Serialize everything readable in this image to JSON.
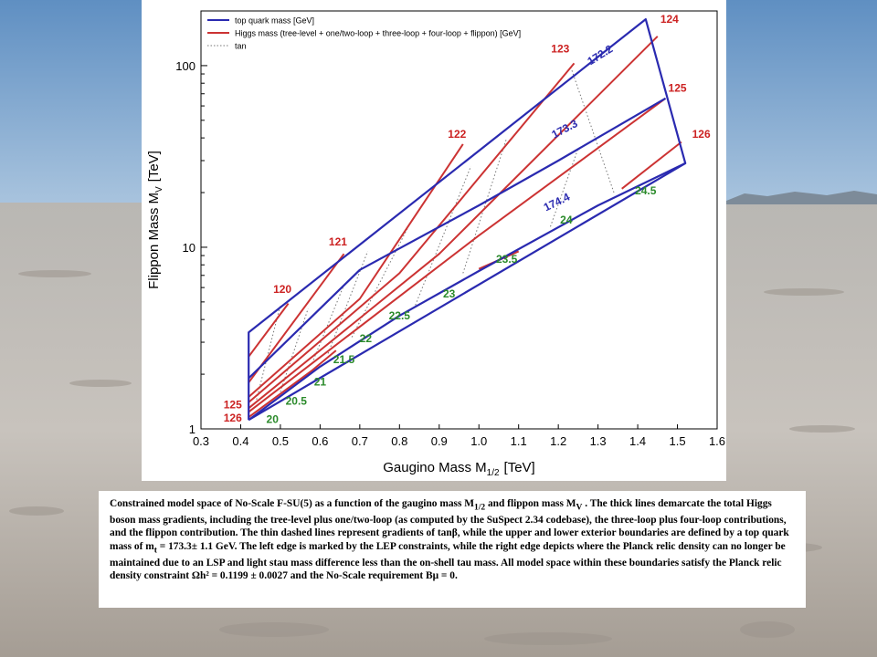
{
  "chart_data": {
    "type": "line",
    "xlabel": "Gaugino Mass M",
    "xlabel_sub": "1/2",
    "xlabel_unit": "[TeV]",
    "ylabel": "Flippon Mass M",
    "ylabel_sub": "V",
    "ylabel_unit": "[TeV]",
    "xlim": [
      0.3,
      1.6
    ],
    "ylim": [
      1,
      200
    ],
    "yscale": "log",
    "x_ticks": [
      "0.3",
      "0.4",
      "0.5",
      "0.6",
      "0.7",
      "0.8",
      "0.9",
      "1.0",
      "1.1",
      "1.2",
      "1.3",
      "1.4",
      "1.5",
      "1.6"
    ],
    "y_ticks": [
      {
        "value": 1,
        "label": "1"
      },
      {
        "value": 10,
        "label": "10"
      },
      {
        "value": 100,
        "label": "100"
      }
    ],
    "legend": {
      "placement": "top-left",
      "entries": [
        {
          "label": "top quark mass [GeV]",
          "color": "#2a2ab0",
          "style": "solid"
        },
        {
          "label": "Higgs mass (tree-level + one/two-loop + three-loop + four-loop + flippon) [GeV]",
          "color": "#cc3333",
          "style": "solid"
        },
        {
          "label": "tan",
          "color": "#777777",
          "style": "dotted"
        }
      ]
    },
    "series": [
      {
        "group": "boundary",
        "color": "#2a2ab0",
        "points": [
          [
            0.42,
            1.12
          ],
          [
            0.42,
            3.4
          ],
          [
            1.42,
            180
          ],
          [
            1.52,
            29
          ],
          [
            0.42,
            1.12
          ]
        ]
      },
      {
        "name": "173.3",
        "group": "top",
        "color": "#2a2ab0",
        "points": [
          [
            0.42,
            1.9
          ],
          [
            0.7,
            7.5
          ],
          [
            1.0,
            17
          ],
          [
            1.2,
            30
          ],
          [
            1.47,
            66
          ]
        ]
      },
      {
        "name": "174.4",
        "group": "top",
        "color": "#2a2ab0",
        "points": [
          [
            0.42,
            1.12
          ],
          [
            0.6,
            2.2
          ],
          [
            0.8,
            4.2
          ],
          [
            1.0,
            7.4
          ],
          [
            1.3,
            17
          ],
          [
            1.52,
            29
          ]
        ]
      },
      {
        "name": "120",
        "group": "higgs",
        "color": "#cc3333",
        "points": [
          [
            0.42,
            2.5
          ],
          [
            0.52,
            4.9
          ]
        ]
      },
      {
        "name": "121",
        "group": "higgs",
        "color": "#cc3333",
        "points": [
          [
            0.42,
            1.8
          ],
          [
            0.66,
            9.2
          ]
        ]
      },
      {
        "name": "122",
        "group": "higgs",
        "color": "#cc3333",
        "points": [
          [
            0.42,
            1.5
          ],
          [
            0.7,
            5.2
          ],
          [
            0.96,
            37
          ]
        ]
      },
      {
        "name": "123",
        "group": "higgs",
        "color": "#cc3333",
        "points": [
          [
            0.42,
            1.4
          ],
          [
            0.8,
            7.2
          ],
          [
            1.24,
            103
          ]
        ]
      },
      {
        "name": "124",
        "group": "higgs",
        "color": "#cc3333",
        "points": [
          [
            0.42,
            1.3
          ],
          [
            0.9,
            9.2
          ],
          [
            1.45,
            145
          ]
        ]
      },
      {
        "name": "125",
        "group": "higgs",
        "color": "#cc3333",
        "points": [
          [
            0.42,
            1.24
          ],
          [
            1.0,
            11.6
          ],
          [
            1.47,
            66
          ]
        ]
      },
      {
        "name": "126",
        "group": "higgs",
        "color": "#cc3333",
        "points": [
          [
            0.42,
            1.16
          ],
          [
            0.58,
            2.1
          ],
          [
            0.64,
            2.7
          ]
        ]
      },
      {
        "name": "126b",
        "group": "higgs",
        "color": "#cc3333",
        "points": [
          [
            1.0,
            7.6
          ],
          [
            1.1,
            9.5
          ]
        ]
      },
      {
        "name": "126c",
        "group": "higgs",
        "color": "#cc3333",
        "points": [
          [
            1.36,
            21
          ],
          [
            1.51,
            38
          ]
        ]
      },
      {
        "name": "20.5",
        "group": "tan",
        "color": "#777777",
        "points": [
          [
            0.44,
            1.45
          ],
          [
            0.5,
            4.8
          ]
        ]
      },
      {
        "name": "21",
        "group": "tan",
        "color": "#777777",
        "points": [
          [
            0.5,
            1.6
          ],
          [
            0.57,
            4.6
          ]
        ]
      },
      {
        "name": "21.5",
        "group": "tan",
        "color": "#777777",
        "points": [
          [
            0.58,
            2.3
          ],
          [
            0.66,
            6.2
          ]
        ]
      },
      {
        "name": "22",
        "group": "tan",
        "color": "#777777",
        "points": [
          [
            0.62,
            2.6
          ],
          [
            0.72,
            9.5
          ]
        ]
      },
      {
        "name": "22.5",
        "group": "tan",
        "color": "#777777",
        "points": [
          [
            0.68,
            3.2
          ],
          [
            0.83,
            14
          ]
        ]
      },
      {
        "name": "23",
        "group": "tan",
        "color": "#777777",
        "points": [
          [
            0.84,
            4.8
          ],
          [
            0.98,
            28
          ]
        ]
      },
      {
        "name": "23.5",
        "group": "tan",
        "color": "#777777",
        "points": [
          [
            0.96,
            7.2
          ],
          [
            1.07,
            40
          ]
        ]
      },
      {
        "name": "24",
        "group": "tan",
        "color": "#777777",
        "points": [
          [
            1.18,
            13
          ],
          [
            1.25,
            35
          ]
        ]
      },
      {
        "name": "24.5",
        "group": "tan",
        "color": "#777777",
        "points": [
          [
            1.34,
            20
          ],
          [
            1.23,
            100
          ]
        ]
      }
    ],
    "annotations": [
      {
        "text": "120",
        "x": 0.505,
        "y": 5.6,
        "color": "#cc2222"
      },
      {
        "text": "121",
        "x": 0.645,
        "y": 10.2,
        "color": "#cc2222"
      },
      {
        "text": "122",
        "x": 0.945,
        "y": 40,
        "color": "#cc2222"
      },
      {
        "text": "123",
        "x": 1.205,
        "y": 118,
        "color": "#cc2222"
      },
      {
        "text": "124",
        "x": 1.48,
        "y": 172,
        "color": "#cc2222"
      },
      {
        "text": "125",
        "x": 1.5,
        "y": 72,
        "color": "#cc2222"
      },
      {
        "text": "126",
        "x": 1.56,
        "y": 40,
        "color": "#cc2222"
      },
      {
        "text": "125",
        "x": 0.38,
        "y": 1.3,
        "color": "#cc2222"
      },
      {
        "text": "126",
        "x": 0.38,
        "y": 1.1,
        "color": "#cc2222"
      },
      {
        "text": "172.2",
        "x": 1.31,
        "y": 110,
        "color": "#2a2ab0",
        "rotate": -32
      },
      {
        "text": "173.3",
        "x": 1.22,
        "y": 43,
        "color": "#2a2ab0",
        "rotate": -28
      },
      {
        "text": "174.4",
        "x": 1.2,
        "y": 17,
        "color": "#2a2ab0",
        "rotate": -26
      },
      {
        "text": "20",
        "x": 0.48,
        "y": 1.08,
        "color": "#2a8a2a"
      },
      {
        "text": "20.5",
        "x": 0.54,
        "y": 1.36,
        "color": "#2a8a2a"
      },
      {
        "text": "21",
        "x": 0.6,
        "y": 1.73,
        "color": "#2a8a2a"
      },
      {
        "text": "21.5",
        "x": 0.66,
        "y": 2.3,
        "color": "#2a8a2a"
      },
      {
        "text": "22",
        "x": 0.715,
        "y": 3.0,
        "color": "#2a8a2a"
      },
      {
        "text": "22.5",
        "x": 0.8,
        "y": 4.0,
        "color": "#2a8a2a"
      },
      {
        "text": "23",
        "x": 0.925,
        "y": 5.3,
        "color": "#2a8a2a"
      },
      {
        "text": "23.5",
        "x": 1.07,
        "y": 8.2,
        "color": "#2a8a2a"
      },
      {
        "text": "24",
        "x": 1.22,
        "y": 13.5,
        "color": "#2a8a2a"
      },
      {
        "text": "24.5",
        "x": 1.42,
        "y": 19.5,
        "color": "#2a8a2a"
      }
    ]
  },
  "caption": {
    "html": "Constrained model space of No-Scale F-SU(5) as a function of the gaugino mass M<sub>1/2</sub> and flippon mass M<sub>V</sub> . The thick lines demarcate the total Higgs boson mass gradients, including the tree-level plus one/two-loop (as computed by the SuSpect 2.34 codebase), the three-loop plus four-loop contributions, and the flippon contribution. The thin dashed lines represent gradients of tanβ, while the upper and lower exterior boundaries are defined by a top quark mass of m<sub>t</sub> = 173.3± 1.1 GeV. The left edge is marked by the LEP constraints, while the right edge depicts where the Planck relic density can no longer be maintained due to an LSP and light stau mass difference less than the on-shell tau mass. All model space within these boundaries satisfy the Planck relic density constraint Ωh² = 0.1199 ± 0.0027 and the No-Scale requirement Bμ = 0."
  }
}
